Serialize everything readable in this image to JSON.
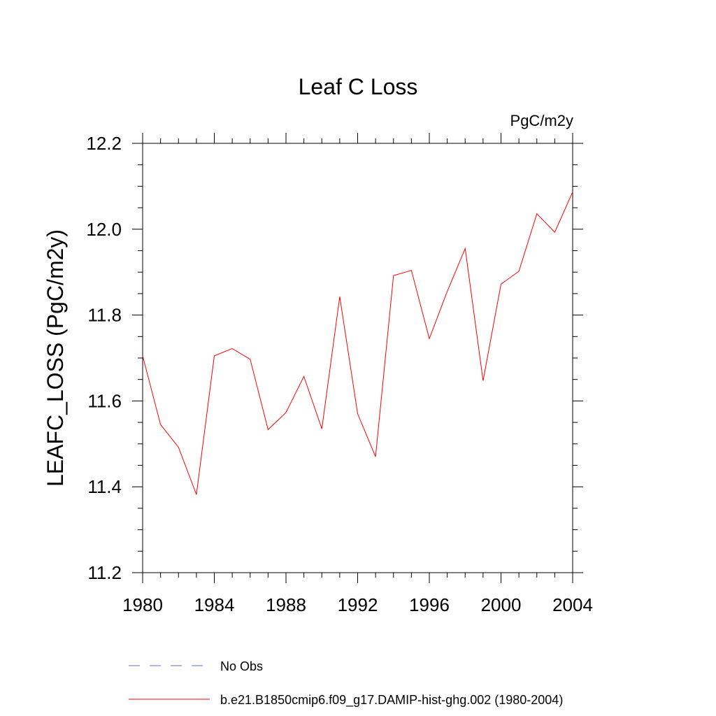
{
  "chart_data": {
    "type": "line",
    "title": "Leaf C Loss",
    "units_label": "PgC/m2y",
    "ylabel": "LEAFC_LOSS  (PgC/m2y)",
    "xlabel": "",
    "xlim": [
      1980,
      2004
    ],
    "ylim": [
      11.2,
      12.2
    ],
    "x_ticks": [
      1980,
      1984,
      1988,
      1992,
      1996,
      2000,
      2004
    ],
    "x_tick_labels": [
      "1980",
      "1984",
      "1988",
      "1992",
      "1996",
      "2000",
      "2004"
    ],
    "y_ticks": [
      11.2,
      11.4,
      11.6,
      11.8,
      12.0,
      12.2
    ],
    "y_tick_labels": [
      "11.2",
      "11.4",
      "11.6",
      "11.8",
      "12.0",
      "12.2"
    ],
    "grid": false,
    "legend_position": "bottom",
    "series": [
      {
        "name": "b.e21.B1850cmip6.f09_g17.DAMIP-hist-ghg.002 (1980-2004)",
        "color": "#ff0000",
        "dash": "solid",
        "x": [
          1980,
          1981,
          1982,
          1983,
          1984,
          1985,
          1986,
          1987,
          1988,
          1989,
          1990,
          1991,
          1992,
          1993,
          1994,
          1995,
          1996,
          1997,
          1998,
          1999,
          2000,
          2001,
          2002,
          2003,
          2004
        ],
        "values": [
          11.705,
          11.545,
          11.492,
          11.382,
          11.705,
          11.722,
          11.697,
          11.533,
          11.573,
          11.657,
          11.535,
          11.843,
          11.57,
          11.47,
          11.892,
          11.904,
          11.745,
          11.855,
          11.955,
          11.647,
          11.872,
          11.902,
          12.036,
          11.993,
          12.087
        ]
      }
    ],
    "legend": [
      {
        "label": "No Obs",
        "color": "#6a6ad0",
        "dash": "dashed"
      },
      {
        "label": "b.e21.B1850cmip6.f09_g17.DAMIP-hist-ghg.002 (1980-2004)",
        "color": "#ff0000",
        "dash": "solid"
      }
    ]
  }
}
